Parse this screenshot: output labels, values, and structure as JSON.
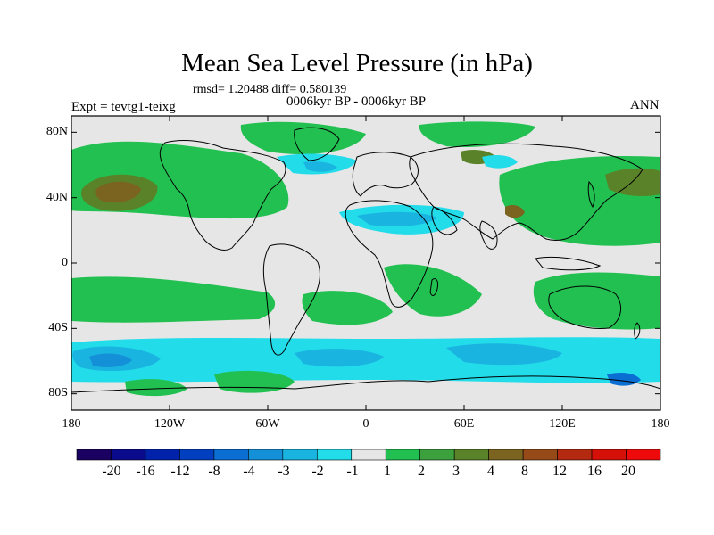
{
  "title": "Mean Sea Level Pressure (in hPa)",
  "stats_line": "rmsd= 1.20488 diff= 0.580139",
  "subtitle": "0006kyr BP - 0006kyr BP",
  "experiment_label": "Expt = tevtg1-teixg",
  "season_label": "ANN",
  "map": {
    "lat_range": [
      -90,
      90
    ],
    "lon_range": [
      -180,
      180
    ],
    "lat_ticks": [
      "80N",
      "40N",
      "0",
      "40S",
      "80S"
    ],
    "lat_tick_values": [
      80,
      40,
      0,
      -40,
      -80
    ],
    "lon_ticks": [
      "180",
      "120W",
      "60W",
      "0",
      "60E",
      "120E",
      "180"
    ],
    "lon_tick_values": [
      -180,
      -120,
      -60,
      0,
      60,
      120,
      180
    ]
  },
  "colorbar": {
    "labels": [
      "-20",
      "-16",
      "-12",
      "-8",
      "-4",
      "-3",
      "-2",
      "-1",
      "1",
      "2",
      "3",
      "4",
      "8",
      "12",
      "16",
      "20"
    ],
    "colors": [
      "#1a0060",
      "#0a0a8c",
      "#0022aa",
      "#0040c0",
      "#0a6ed2",
      "#1490d8",
      "#1ab4e0",
      "#22dcea",
      "#e6e6e6",
      "#22c050",
      "#3ca03c",
      "#5a8228",
      "#7a6420",
      "#964a18",
      "#b42a10",
      "#d41008",
      "#ee0a0a"
    ]
  }
}
